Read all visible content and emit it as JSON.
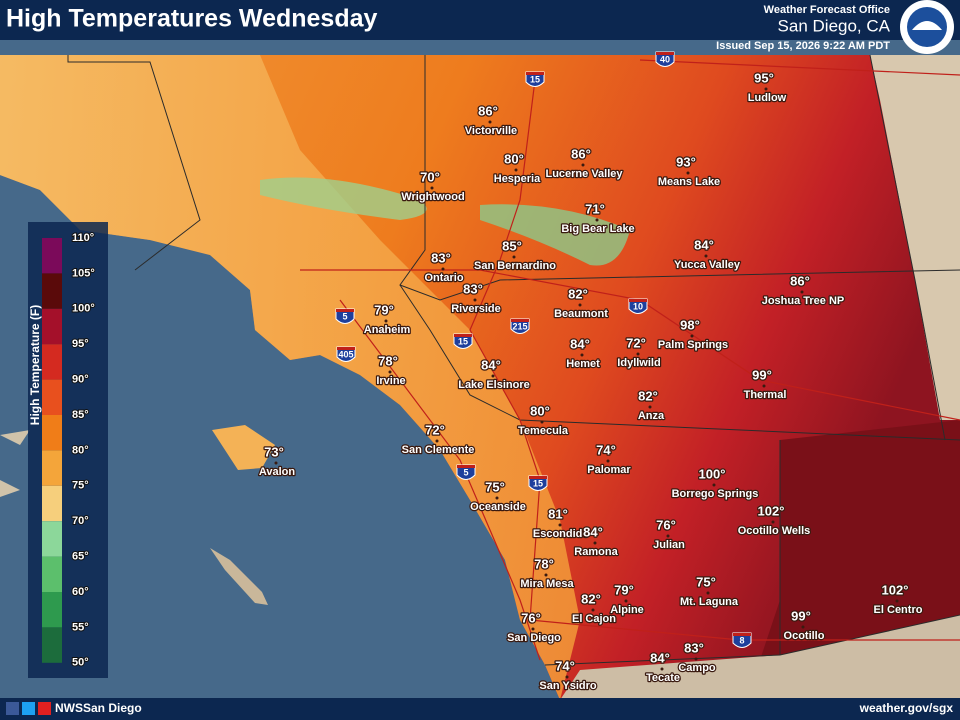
{
  "header": {
    "title": "High Temperatures Wednesday",
    "office": "Weather Forecast Office",
    "location": "San Diego, CA",
    "issued": "Issued Sep 15, 2026 9:22 AM PDT"
  },
  "legend": {
    "title": "High Temperature (F)",
    "ticks": [
      "110°",
      "105°",
      "100°",
      "95°",
      "90°",
      "85°",
      "80°",
      "75°",
      "70°",
      "65°",
      "60°",
      "55°",
      "50°"
    ]
  },
  "cities": [
    {
      "name": "Ludlow",
      "temp": "95°"
    },
    {
      "name": "Victorville",
      "temp": "86°"
    },
    {
      "name": "Hesperia",
      "temp": "80°"
    },
    {
      "name": "Lucerne Valley",
      "temp": "86°"
    },
    {
      "name": "Means Lake",
      "temp": "93°"
    },
    {
      "name": "Wrightwood",
      "temp": "70°"
    },
    {
      "name": "Big Bear Lake",
      "temp": "71°"
    },
    {
      "name": "Yucca Valley",
      "temp": "84°"
    },
    {
      "name": "San Bernardino",
      "temp": "85°"
    },
    {
      "name": "Ontario",
      "temp": "83°"
    },
    {
      "name": "Joshua Tree NP",
      "temp": "86°"
    },
    {
      "name": "Riverside",
      "temp": "83°"
    },
    {
      "name": "Beaumont",
      "temp": "82°"
    },
    {
      "name": "Anaheim",
      "temp": "79°"
    },
    {
      "name": "Palm Springs",
      "temp": "98°"
    },
    {
      "name": "Idyllwild",
      "temp": "72°"
    },
    {
      "name": "Hemet",
      "temp": "84°"
    },
    {
      "name": "Irvine",
      "temp": "78°"
    },
    {
      "name": "Lake Elsinore",
      "temp": "84°"
    },
    {
      "name": "Thermal",
      "temp": "99°"
    },
    {
      "name": "Anza",
      "temp": "82°"
    },
    {
      "name": "Temecula",
      "temp": "80°"
    },
    {
      "name": "San Clemente",
      "temp": "72°"
    },
    {
      "name": "Palomar",
      "temp": "74°"
    },
    {
      "name": "Avalon",
      "temp": "73°"
    },
    {
      "name": "Borrego Springs",
      "temp": "100°"
    },
    {
      "name": "Oceanside",
      "temp": "75°"
    },
    {
      "name": "Ocotillo Wells",
      "temp": "102°"
    },
    {
      "name": "Escondido",
      "temp": "81°"
    },
    {
      "name": "Ramona",
      "temp": "84°"
    },
    {
      "name": "Julian",
      "temp": "76°"
    },
    {
      "name": "Mira Mesa",
      "temp": "78°"
    },
    {
      "name": "Mt. Laguna",
      "temp": "75°"
    },
    {
      "name": "Alpine",
      "temp": "79°"
    },
    {
      "name": "El Cajon",
      "temp": "82°"
    },
    {
      "name": "El Centro",
      "temp": "102°"
    },
    {
      "name": "Ocotillo",
      "temp": "99°"
    },
    {
      "name": "San Diego",
      "temp": "76°"
    },
    {
      "name": "Campo",
      "temp": "83°"
    },
    {
      "name": "Tecate",
      "temp": "84°"
    },
    {
      "name": "San Ysidro",
      "temp": "74°"
    }
  ],
  "highways": [
    "40",
    "15",
    "5",
    "405",
    "15",
    "215",
    "10",
    "5",
    "15",
    "8"
  ],
  "footer": {
    "handle": "NWSSan Diego",
    "url": "weather.gov/sgx"
  }
}
